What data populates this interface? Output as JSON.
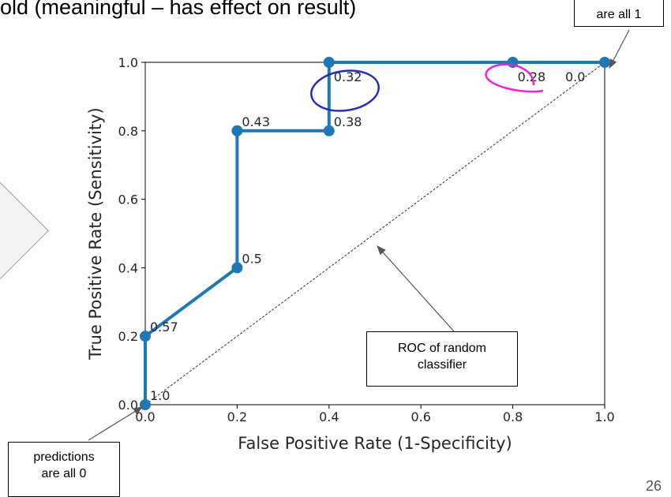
{
  "slide": {
    "title": "old (meaningful – has effect on result)",
    "page_number": "26"
  },
  "callouts": {
    "top_right": "are all 1",
    "bottom_left_line1": "predictions",
    "bottom_left_line2": "are all 0",
    "random_line1": "ROC of random",
    "random_line2": "classifier"
  },
  "colors": {
    "roc_line": "#1f77b4",
    "circle_032": "#2a2ab8",
    "circle_028": "#ee22dd"
  },
  "chart_data": {
    "type": "line",
    "xlabel": "False Positive Rate (1-Specificity)",
    "ylabel": "True Positive Rate (Sensitivity)",
    "xlim": [
      0.0,
      1.0
    ],
    "ylim": [
      0.0,
      1.0
    ],
    "xticks": [
      "0.0",
      "0.2",
      "0.4",
      "0.6",
      "0.8",
      "1.0"
    ],
    "yticks": [
      "0.0",
      "0.2",
      "0.4",
      "0.6",
      "0.8",
      "1.0"
    ],
    "grid": false,
    "series": [
      {
        "x": [
          0.0,
          0.0,
          0.2,
          0.2,
          0.4,
          0.4,
          0.8,
          1.0
        ],
        "y": [
          0.0,
          0.2,
          0.4,
          0.8,
          0.8,
          1.0,
          1.0,
          1.0
        ],
        "thresholds": [
          "1.0",
          "0.57",
          "0.5",
          "0.43",
          "0.38",
          "0.32",
          "0.28",
          "0.0"
        ]
      }
    ],
    "reference_line": {
      "x": [
        0.0,
        1.0
      ],
      "y": [
        0.0,
        1.0
      ],
      "style": "dashed"
    }
  }
}
